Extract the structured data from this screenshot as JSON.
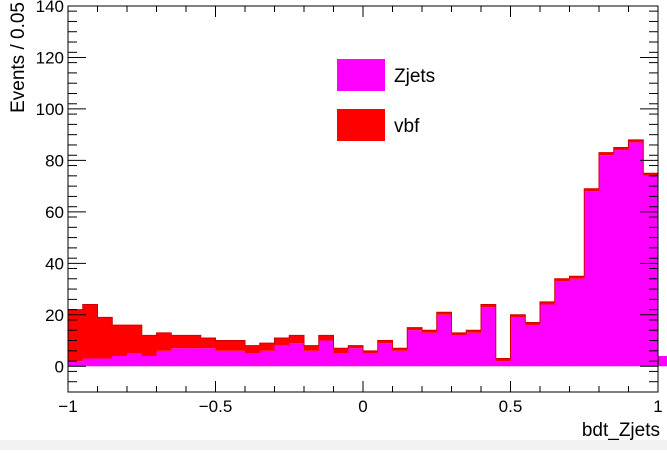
{
  "chart_data": {
    "type": "bar",
    "stacked": true,
    "histogram": true,
    "title": "",
    "xlabel": "bdt_Zjets",
    "ylabel": "Events / 0.05",
    "xlim": [
      -1,
      1
    ],
    "ylim": [
      -10,
      140
    ],
    "bin_width": 0.05,
    "x_ticks": [
      -1,
      -0.5,
      0,
      0.5,
      1
    ],
    "x_tick_labels": [
      "−1",
      "−0.5",
      "0",
      "0.5",
      "1"
    ],
    "y_ticks": [
      0,
      20,
      40,
      60,
      80,
      100,
      120,
      140
    ],
    "y_tick_labels": [
      "0",
      "20",
      "40",
      "60",
      "80",
      "100",
      "120",
      "140"
    ],
    "grid": false,
    "legend_position": "top-center",
    "series": [
      {
        "name": "Zjets",
        "color": "#ff00ff",
        "values": [
          2,
          3,
          3,
          4,
          5,
          4,
          6,
          7,
          7,
          7,
          6,
          6,
          5,
          6,
          8,
          9,
          6,
          10,
          5,
          7,
          5,
          9,
          6,
          14,
          13,
          20,
          12,
          13,
          23,
          2,
          19,
          16,
          24,
          33,
          34,
          68,
          82,
          84,
          87,
          74
        ]
      },
      {
        "name": "vbf",
        "color": "#ff0000",
        "values": [
          20,
          21,
          16,
          12,
          11,
          8,
          7,
          5,
          5,
          4,
          4,
          4,
          3,
          3,
          3,
          3,
          2,
          2,
          2,
          1,
          1,
          1,
          1,
          1,
          1,
          1,
          1,
          1,
          1,
          1,
          1,
          1,
          1,
          1,
          1,
          1,
          1,
          1,
          1,
          1
        ]
      }
    ]
  }
}
